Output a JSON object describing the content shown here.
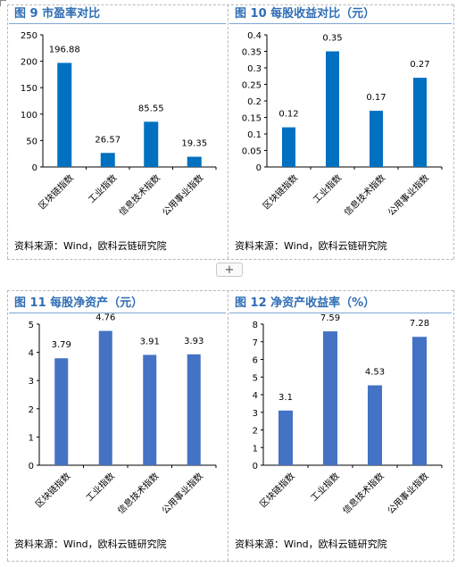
{
  "page": {
    "add_label": "+"
  },
  "chart_data": [
    {
      "type": "bar",
      "title": "图 9 市盈率对比",
      "categories": [
        "区块链指数",
        "工业指数",
        "信息技术指数",
        "公用事业指数"
      ],
      "series": [
        {
          "values": [
            196.88,
            26.57,
            85.55,
            19.35
          ]
        }
      ],
      "value_labels": [
        "196.88",
        "26.57",
        "85.55",
        "19.35"
      ],
      "ylim": [
        0,
        250
      ],
      "yticks": [
        0,
        50,
        100,
        150,
        200,
        250
      ],
      "ytick_labels": [
        "0",
        "50",
        "100",
        "150",
        "200",
        "250"
      ],
      "grid": false,
      "bar_color": "#0070c0",
      "source": "资料来源：Wind，欧科云链研究院"
    },
    {
      "type": "bar",
      "title": "图 10 每股收益对比（元）",
      "categories": [
        "区块链指数",
        "工业指数",
        "信息技术指数",
        "公用事业指数"
      ],
      "series": [
        {
          "values": [
            0.12,
            0.35,
            0.17,
            0.27
          ]
        }
      ],
      "value_labels": [
        "0.12",
        "0.35",
        "0.17",
        "0.27"
      ],
      "ylim": [
        0,
        0.4
      ],
      "yticks": [
        0,
        0.05,
        0.1,
        0.15,
        0.2,
        0.25,
        0.3,
        0.35,
        0.4
      ],
      "ytick_labels": [
        "0",
        "0.05",
        "0.1",
        "0.15",
        "0.2",
        "0.25",
        "0.3",
        "0.35",
        "0.4"
      ],
      "grid": false,
      "bar_color": "#0070c0",
      "source": "资料来源：Wind，欧科云链研究院"
    },
    {
      "type": "bar",
      "title": "图 11 每股净资产（元）",
      "categories": [
        "区块链指数",
        "工业指数",
        "信息技术指数",
        "公用事业指数"
      ],
      "series": [
        {
          "values": [
            3.79,
            4.76,
            3.91,
            3.93
          ]
        }
      ],
      "value_labels": [
        "3.79",
        "4.76",
        "3.91",
        "3.93"
      ],
      "ylim": [
        0,
        5
      ],
      "yticks": [
        0,
        1,
        2,
        3,
        4,
        5
      ],
      "ytick_labels": [
        "0",
        "1",
        "2",
        "3",
        "4",
        "5"
      ],
      "grid": false,
      "bar_color": "#4472c4",
      "source": "资料来源：Wind，欧科云链研究院"
    },
    {
      "type": "bar",
      "title": "图 12 净资产收益率（%）",
      "categories": [
        "区块链指数",
        "工业指数",
        "信息技术指数",
        "公用事业指数"
      ],
      "series": [
        {
          "values": [
            3.1,
            7.59,
            4.53,
            7.28
          ]
        }
      ],
      "value_labels": [
        "3.1",
        "7.59",
        "4.53",
        "7.28"
      ],
      "ylim": [
        0,
        8
      ],
      "yticks": [
        0,
        1,
        2,
        3,
        4,
        5,
        6,
        7,
        8
      ],
      "ytick_labels": [
        "0",
        "1",
        "2",
        "3",
        "4",
        "5",
        "6",
        "7",
        "8"
      ],
      "grid": false,
      "bar_color": "#4472c4",
      "source": "资料来源：Wind，欧科云链研究院"
    }
  ]
}
